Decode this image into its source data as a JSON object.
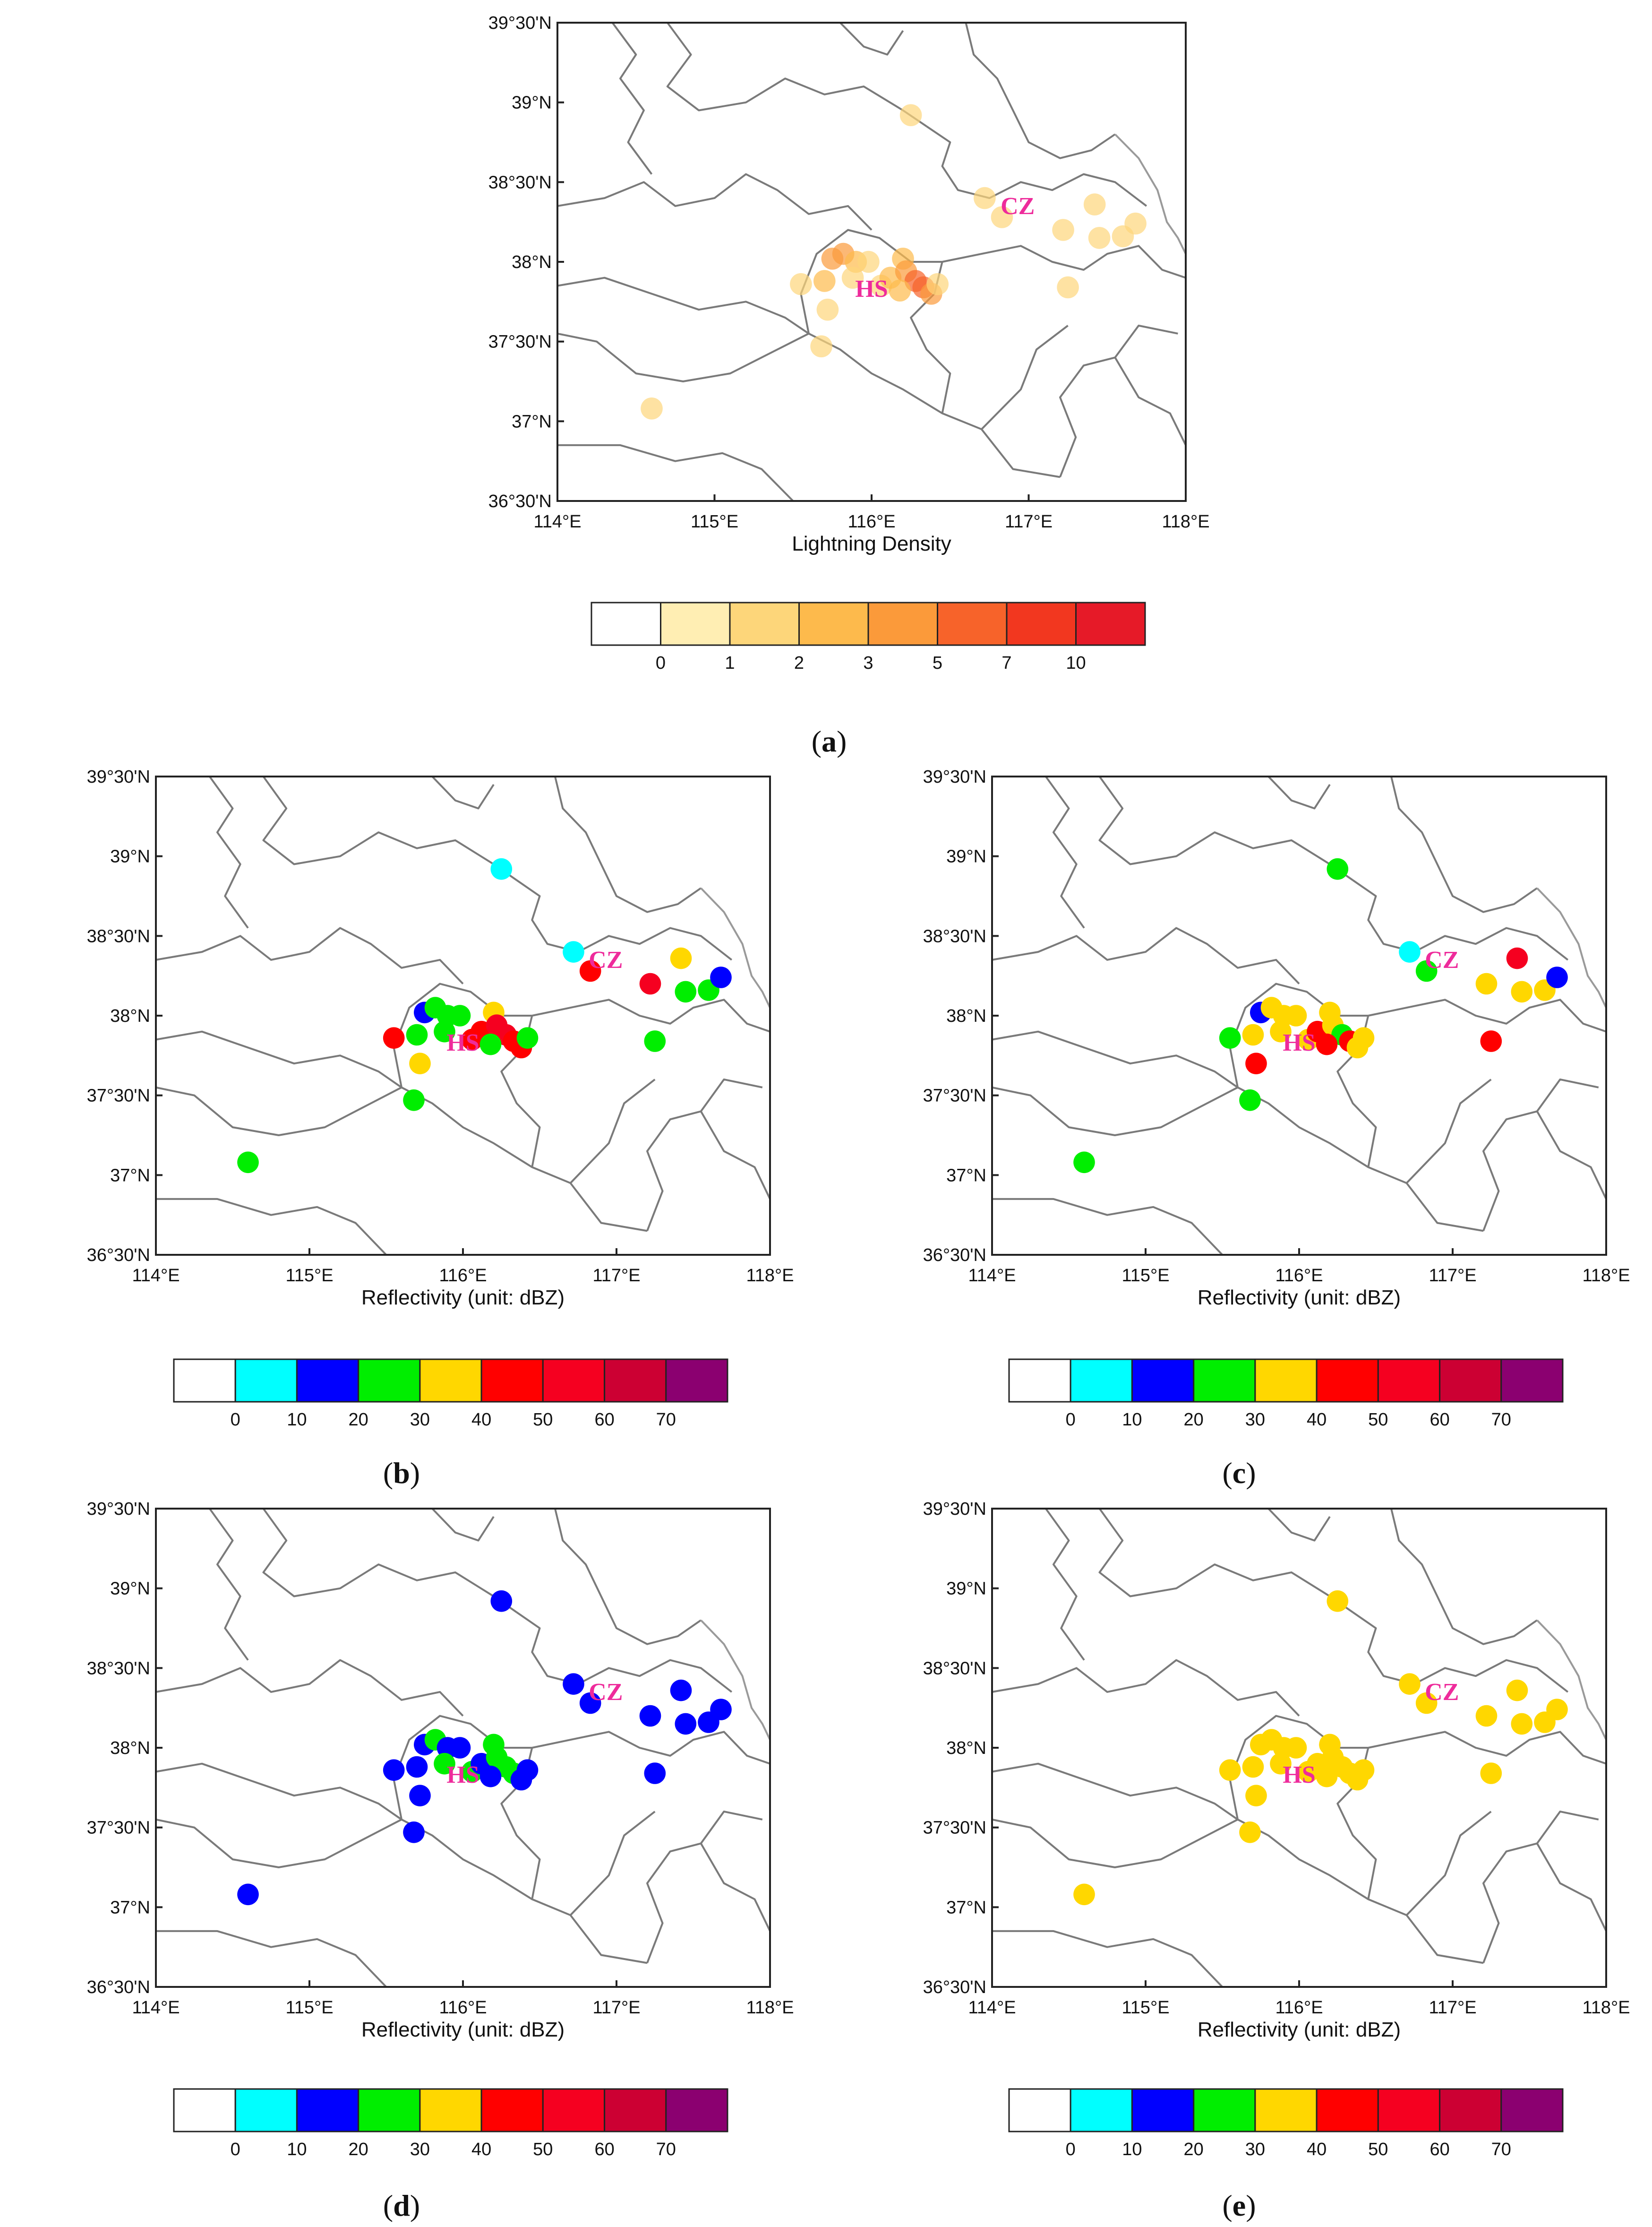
{
  "figure": {
    "lon_range": [
      114,
      118
    ],
    "lat_range": [
      36.5,
      39.5
    ],
    "lon_tick_values": [
      114,
      115,
      116,
      117,
      118
    ],
    "lat_tick_values": [
      36.5,
      37,
      37.5,
      38,
      38.5,
      39,
      39.5
    ],
    "lon_ticks": [
      "114°E",
      "115°E",
      "116°E",
      "117°E",
      "118°E"
    ],
    "lat_ticks": [
      "36°30'N",
      "37°N",
      "37°30'N",
      "38°N",
      "38°30'N",
      "39°N",
      "39°30'N"
    ],
    "cities": [
      {
        "name": "HS",
        "lon": 116.0,
        "lat": 37.78
      },
      {
        "name": "CZ",
        "lon": 116.93,
        "lat": 38.3
      }
    ],
    "sites": [
      {
        "id": 1,
        "lon": 114.6,
        "lat": 37.08
      },
      {
        "id": 2,
        "lon": 116.25,
        "lat": 38.92
      },
      {
        "id": 3,
        "lon": 115.55,
        "lat": 37.86
      },
      {
        "id": 4,
        "lon": 115.68,
        "lat": 37.47
      },
      {
        "id": 5,
        "lon": 115.72,
        "lat": 37.7
      },
      {
        "id": 6,
        "lon": 115.7,
        "lat": 37.88
      },
      {
        "id": 7,
        "lon": 115.75,
        "lat": 38.02
      },
      {
        "id": 8,
        "lon": 115.82,
        "lat": 38.05
      },
      {
        "id": 9,
        "lon": 115.9,
        "lat": 38.0
      },
      {
        "id": 10,
        "lon": 115.98,
        "lat": 38.0
      },
      {
        "id": 11,
        "lon": 115.88,
        "lat": 37.9
      },
      {
        "id": 12,
        "lon": 116.06,
        "lat": 37.85
      },
      {
        "id": 13,
        "lon": 116.12,
        "lat": 37.9
      },
      {
        "id": 14,
        "lon": 116.2,
        "lat": 38.02
      },
      {
        "id": 15,
        "lon": 116.22,
        "lat": 37.94
      },
      {
        "id": 16,
        "lon": 116.28,
        "lat": 37.88
      },
      {
        "id": 17,
        "lon": 116.33,
        "lat": 37.84
      },
      {
        "id": 18,
        "lon": 116.38,
        "lat": 37.8
      },
      {
        "id": 19,
        "lon": 116.18,
        "lat": 37.82
      },
      {
        "id": 20,
        "lon": 116.42,
        "lat": 37.86
      },
      {
        "id": 21,
        "lon": 116.72,
        "lat": 38.4
      },
      {
        "id": 22,
        "lon": 116.83,
        "lat": 38.28
      },
      {
        "id": 23,
        "lon": 117.22,
        "lat": 38.2
      },
      {
        "id": 24,
        "lon": 117.25,
        "lat": 37.84
      },
      {
        "id": 25,
        "lon": 117.42,
        "lat": 38.36
      },
      {
        "id": 26,
        "lon": 117.45,
        "lat": 38.15
      },
      {
        "id": 27,
        "lon": 117.6,
        "lat": 38.16
      },
      {
        "id": 28,
        "lon": 117.68,
        "lat": 38.24
      }
    ],
    "panels": [
      {
        "id": "a",
        "caption_open": "(",
        "caption_letter": "a",
        "caption_close": ")",
        "xlabel": "Lightning Density",
        "colorbar": {
          "labels": [
            "0",
            "1",
            "2",
            "3",
            "5",
            "7",
            "10"
          ],
          "colors": [
            "#ffffff",
            "#ffeeb3",
            "#fdd67a",
            "#fdba4c",
            "#fb9a3a",
            "#f7632a",
            "#f2371f",
            "#e61a28"
          ]
        },
        "site_values": [
          1,
          1,
          1,
          1,
          1,
          2,
          3,
          3,
          2,
          1,
          1,
          1,
          2,
          2,
          3,
          5,
          5,
          3,
          2,
          1,
          1,
          1,
          1,
          1,
          1,
          1,
          1,
          1
        ],
        "opacity": 0.7
      },
      {
        "id": "b",
        "caption_open": "(",
        "caption_letter": "b",
        "caption_close": ")",
        "xlabel": "Reflectivity (unit: dBZ)",
        "colorbar": {
          "labels": [
            "0",
            "10",
            "20",
            "30",
            "40",
            "50",
            "60",
            "70"
          ],
          "colors": [
            "#ffffff",
            "#00ffff",
            "#0000ff",
            "#00ee00",
            "#ffd700",
            "#ff0000",
            "#f50020",
            "#cc0033",
            "#8b0070"
          ]
        },
        "site_values": [
          22,
          5,
          45,
          25,
          35,
          25,
          15,
          25,
          20,
          25,
          20,
          40,
          45,
          30,
          50,
          52,
          45,
          40,
          25,
          25,
          5,
          45,
          50,
          25,
          35,
          25,
          25,
          15
        ],
        "opacity": 1.0
      },
      {
        "id": "c",
        "caption_open": "(",
        "caption_letter": "c",
        "caption_close": ")",
        "xlabel": "Reflectivity (unit: dBZ)",
        "colorbar": {
          "labels": [
            "0",
            "10",
            "20",
            "30",
            "40",
            "50",
            "60",
            "70"
          ],
          "colors": [
            "#ffffff",
            "#00ffff",
            "#0000ff",
            "#00ee00",
            "#ffd700",
            "#ff0000",
            "#f50020",
            "#cc0033",
            "#8b0070"
          ]
        },
        "site_values": [
          25,
          25,
          28,
          25,
          45,
          35,
          15,
          35,
          35,
          35,
          30,
          35,
          40,
          35,
          30,
          25,
          45,
          35,
          45,
          35,
          5,
          25,
          35,
          45,
          50,
          35,
          35,
          15
        ],
        "opacity": 1.0
      },
      {
        "id": "d",
        "caption_open": "(",
        "caption_letter": "d",
        "caption_close": ")",
        "xlabel": "Reflectivity (unit: dBZ)",
        "colorbar": {
          "labels": [
            "0",
            "10",
            "20",
            "30",
            "40",
            "50",
            "60",
            "70"
          ],
          "colors": [
            "#ffffff",
            "#00ffff",
            "#0000ff",
            "#00ee00",
            "#ffd700",
            "#ff0000",
            "#f50020",
            "#cc0033",
            "#8b0070"
          ]
        },
        "site_values": [
          15,
          15,
          15,
          15,
          15,
          15,
          15,
          25,
          15,
          15,
          25,
          25,
          15,
          25,
          25,
          25,
          25,
          15,
          15,
          15,
          15,
          15,
          15,
          15,
          15,
          15,
          15,
          15
        ],
        "opacity": 1.0
      },
      {
        "id": "e",
        "caption_open": "(",
        "caption_letter": "e",
        "caption_close": ")",
        "xlabel": "Reflectivity (unit: dBZ)",
        "colorbar": {
          "labels": [
            "0",
            "10",
            "20",
            "30",
            "40",
            "50",
            "60",
            "70"
          ],
          "colors": [
            "#ffffff",
            "#00ffff",
            "#0000ff",
            "#00ee00",
            "#ffd700",
            "#ff0000",
            "#f50020",
            "#cc0033",
            "#8b0070"
          ]
        },
        "site_values": [
          35,
          35,
          35,
          35,
          35,
          35,
          35,
          35,
          35,
          35,
          35,
          35,
          35,
          35,
          35,
          35,
          35,
          35,
          35,
          35,
          35,
          35,
          35,
          35,
          35,
          35,
          35,
          35
        ],
        "opacity": 1.0
      }
    ]
  }
}
